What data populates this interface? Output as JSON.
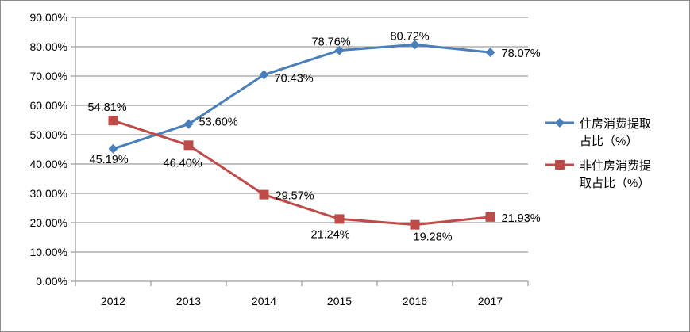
{
  "chart_data": {
    "type": "line",
    "title": "",
    "xlabel": "",
    "ylabel": "",
    "categories": [
      "2012",
      "2013",
      "2014",
      "2015",
      "2016",
      "2017"
    ],
    "ylim": [
      0,
      90
    ],
    "y_ticks": [
      "0.00%",
      "10.00%",
      "20.00%",
      "30.00%",
      "40.00%",
      "50.00%",
      "60.00%",
      "70.00%",
      "80.00%",
      "90.00%"
    ],
    "grid": true,
    "legend_position": "right",
    "series": [
      {
        "name": "住房消费提取占比（%）",
        "legend_lines": [
          "住房消费提取",
          "占比（%）"
        ],
        "color": "#4a7ebb",
        "marker": "diamond",
        "values": [
          45.19,
          53.6,
          70.43,
          78.76,
          80.72,
          78.07
        ],
        "labels": [
          "45.19%",
          "53.60%",
          "70.43%",
          "78.76%",
          "80.72%",
          "78.07%"
        ]
      },
      {
        "name": "非住房消费提取占比（%）",
        "legend_lines": [
          "非住房消费提",
          "取占比（%）"
        ],
        "color": "#be4b48",
        "marker": "square",
        "values": [
          54.81,
          46.4,
          29.57,
          21.24,
          19.28,
          21.93
        ],
        "labels": [
          "54.81%",
          "46.40%",
          "29.57%",
          "21.24%",
          "19.28%",
          "21.93%"
        ]
      }
    ]
  }
}
